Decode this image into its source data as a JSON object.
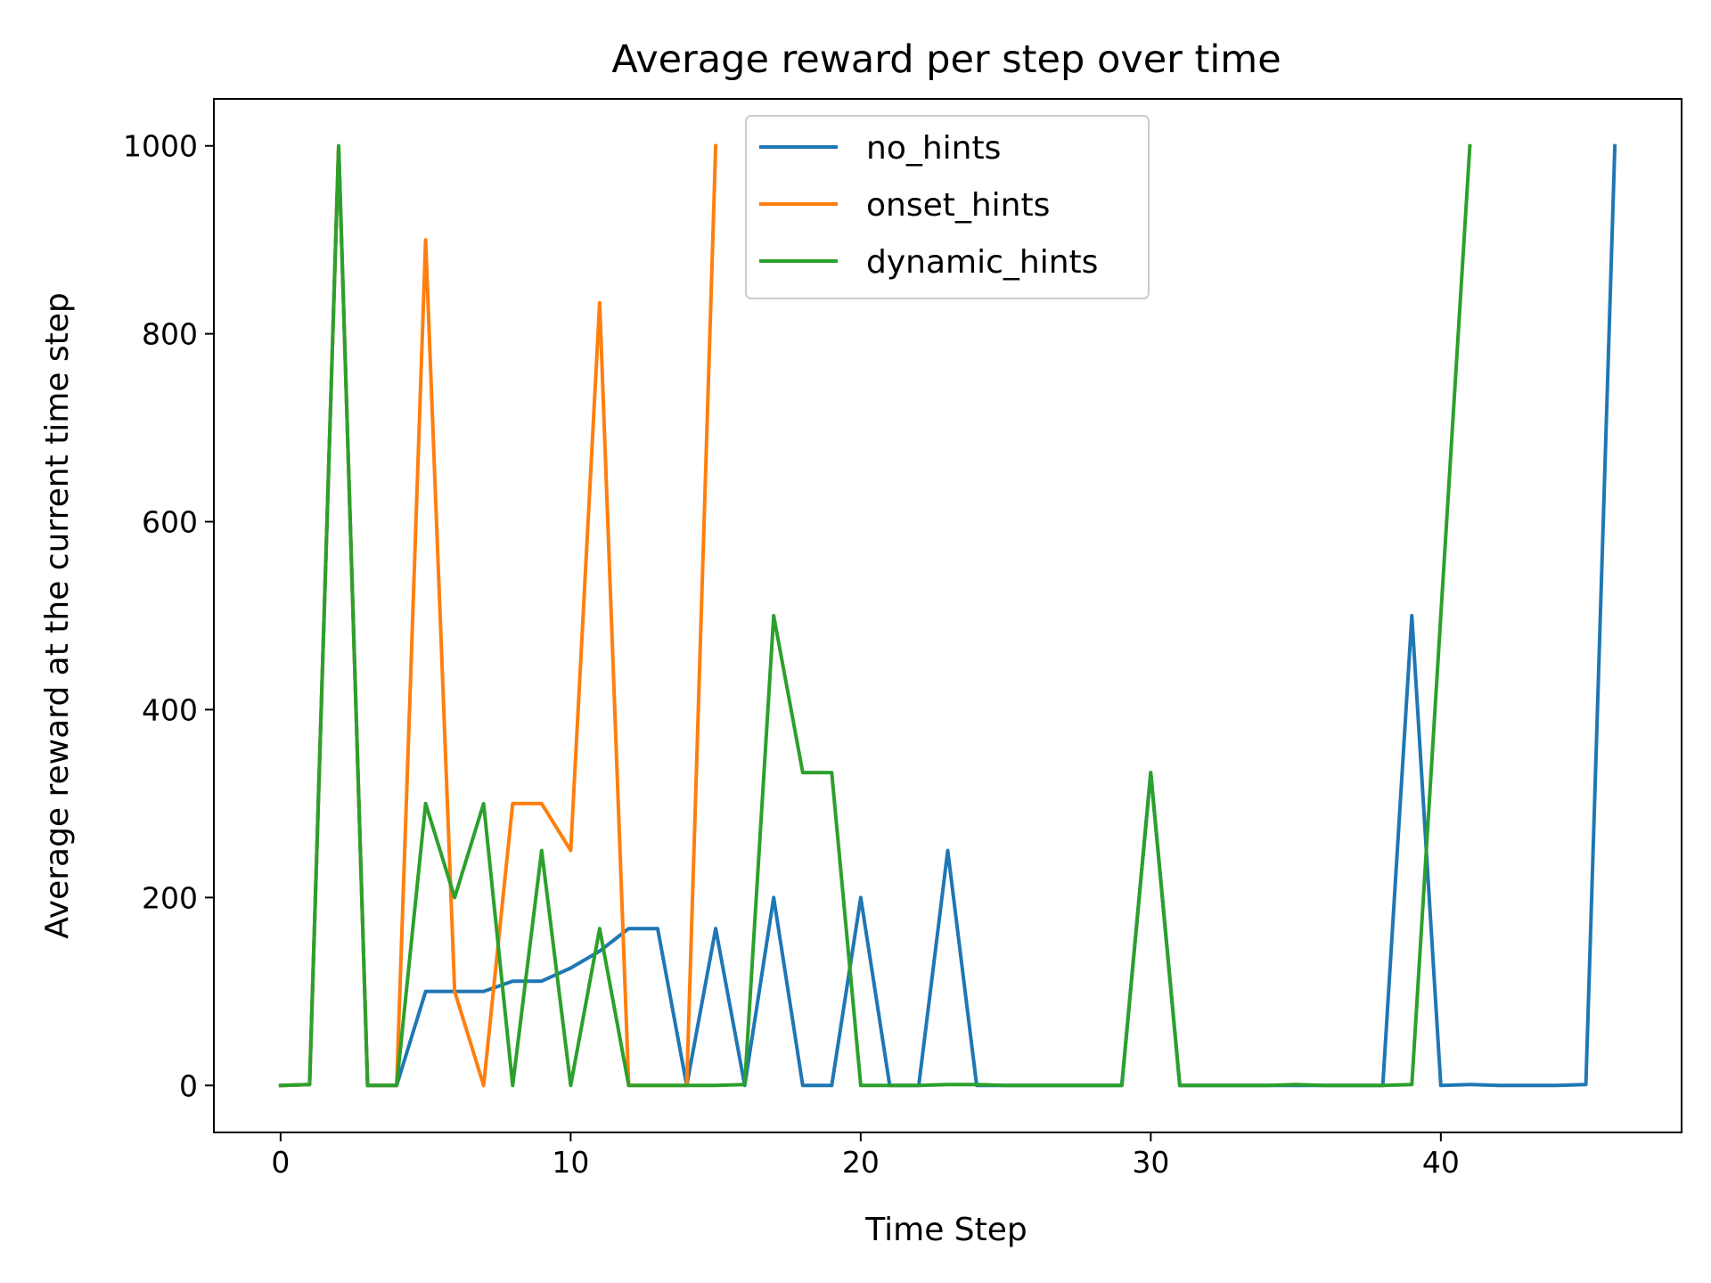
{
  "chart_data": {
    "type": "line",
    "title": "Average reward per step over time",
    "xlabel": "Time Step",
    "ylabel": "Average reward at the current time step",
    "xlim": [
      -2.3,
      48.3
    ],
    "ylim": [
      -50,
      1050
    ],
    "xticks": [
      0,
      10,
      20,
      30,
      40
    ],
    "yticks": [
      0,
      200,
      400,
      600,
      800,
      1000
    ],
    "grid": false,
    "legend_position": "upper-center",
    "series": [
      {
        "name": "no_hints",
        "color": "#1f77b4",
        "x": [
          0,
          1,
          2,
          3,
          4,
          5,
          6,
          7,
          8,
          9,
          10,
          11,
          12,
          13,
          14,
          15,
          16,
          17,
          18,
          19,
          20,
          21,
          22,
          23,
          24,
          25,
          26,
          27,
          28,
          29,
          30,
          31,
          32,
          33,
          34,
          35,
          36,
          37,
          38,
          39,
          40,
          41,
          42,
          43,
          44,
          45,
          46
        ],
        "y": [
          0,
          1,
          1000,
          0,
          0,
          100,
          100,
          100,
          111,
          111,
          125,
          143,
          167,
          167,
          0,
          167,
          0,
          200,
          0,
          0,
          200,
          0,
          0,
          250,
          0,
          0,
          0,
          0,
          0,
          0,
          333,
          0,
          0,
          0,
          0,
          0,
          0,
          0,
          0,
          500,
          0,
          1,
          0,
          0,
          0,
          1,
          1000
        ]
      },
      {
        "name": "onset_hints",
        "color": "#ff7f0e",
        "x": [
          0,
          1,
          2,
          3,
          4,
          5,
          6,
          7,
          8,
          9,
          10,
          11,
          12,
          13,
          14,
          15
        ],
        "y": [
          0,
          1,
          1000,
          0,
          0,
          900,
          100,
          0,
          300,
          300,
          250,
          833,
          0,
          0,
          0,
          1000
        ]
      },
      {
        "name": "dynamic_hints",
        "color": "#2ca02c",
        "x": [
          0,
          1,
          2,
          3,
          4,
          5,
          6,
          7,
          8,
          9,
          10,
          11,
          12,
          13,
          14,
          15,
          16,
          17,
          18,
          19,
          20,
          21,
          22,
          23,
          24,
          25,
          26,
          27,
          28,
          29,
          30,
          31,
          32,
          33,
          34,
          35,
          36,
          37,
          38,
          39,
          40,
          41
        ],
        "y": [
          0,
          1,
          1000,
          0,
          0,
          300,
          200,
          300,
          0,
          250,
          0,
          167,
          0,
          0,
          0,
          0,
          1,
          500,
          333,
          333,
          0,
          0,
          0,
          1,
          1,
          0,
          0,
          0,
          0,
          0,
          333,
          0,
          0,
          0,
          0,
          1,
          0,
          0,
          0,
          1,
          500,
          1000
        ]
      }
    ]
  }
}
